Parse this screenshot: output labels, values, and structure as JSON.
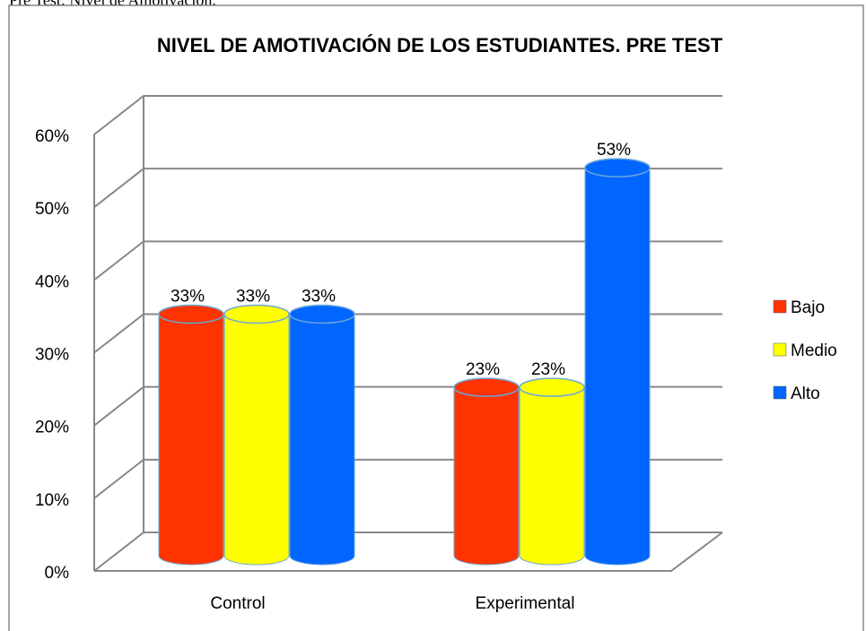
{
  "caption": "Pre Test: Nivel de Amotivación.",
  "chart_data": {
    "type": "bar3d",
    "title": "NIVEL DE AMOTIVACIÓN DE LOS ESTUDIANTES. PRE TEST",
    "categories": [
      "Control",
      "Experimental"
    ],
    "series": [
      {
        "name": "Bajo",
        "color": "#ff3300",
        "values": [
          33,
          23
        ],
        "value_labels": [
          "33%",
          "23%"
        ]
      },
      {
        "name": "Medio",
        "color": "#ffff00",
        "values": [
          33,
          23
        ],
        "value_labels": [
          "33%",
          "23%"
        ]
      },
      {
        "name": "Alto",
        "color": "#0066ff",
        "values": [
          33,
          53
        ],
        "value_labels": [
          "33%",
          "53%"
        ]
      }
    ],
    "ylim": [
      0,
      60
    ],
    "yticks": [
      {
        "value": 0,
        "label": "0%"
      },
      {
        "value": 10,
        "label": "10%"
      },
      {
        "value": 20,
        "label": "20%"
      },
      {
        "value": 30,
        "label": "30%"
      },
      {
        "value": 40,
        "label": "40%"
      },
      {
        "value": 50,
        "label": "50%"
      },
      {
        "value": 60,
        "label": "60%"
      }
    ],
    "grid": true,
    "legend": "right"
  }
}
